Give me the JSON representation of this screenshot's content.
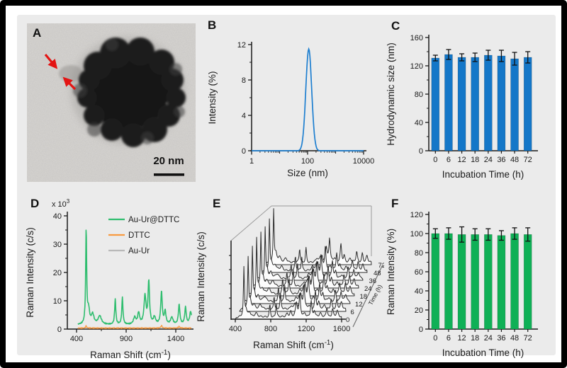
{
  "panels": {
    "a": {
      "label": "A",
      "scale_bar": "20 nm",
      "arrow_color": "#e31413"
    },
    "b": {
      "label": "B"
    },
    "c": {
      "label": "C"
    },
    "d": {
      "label": "D"
    },
    "e": {
      "label": "E"
    },
    "f": {
      "label": "F"
    }
  },
  "chart_data": [
    {
      "id": "B",
      "type": "line",
      "title": "",
      "xlabel": "Size (nm)",
      "ylabel": "Intensity (%)",
      "xscale": "log",
      "xlim": [
        1,
        10000
      ],
      "xticks": [
        1,
        100,
        10000
      ],
      "xticks_medium": [
        10,
        1000
      ],
      "ylim": [
        0,
        12
      ],
      "yticks": [
        0,
        4,
        8,
        12
      ],
      "yminor": 2,
      "line_color": "#1e7fd0",
      "peak": {
        "center_nm": 110,
        "max_intensity": 11.5,
        "sigma_log10": 0.105
      }
    },
    {
      "id": "C",
      "type": "bar",
      "xlabel": "Incubation Time (h)",
      "ylabel": "Hydrodynamic size (nm)",
      "categories": [
        "0",
        "6",
        "12",
        "18",
        "24",
        "36",
        "48",
        "72"
      ],
      "values": [
        131,
        136,
        132,
        132,
        135,
        134,
        130,
        132
      ],
      "errors": [
        4,
        7,
        5,
        6,
        7,
        8,
        9,
        8
      ],
      "ylim": [
        0,
        160
      ],
      "yticks": [
        0,
        40,
        80,
        120,
        160
      ],
      "yminor": 20,
      "bar_color": "#1477c8"
    },
    {
      "id": "D",
      "type": "line",
      "scale_label": "x 10^3^",
      "xlabel": "Raman Shift (cm^-1^)",
      "ylabel": "Raman Intensity (c/s)",
      "xlim": [
        400,
        1560
      ],
      "xticks": [
        400,
        900,
        1400
      ],
      "xminor": [
        650,
        1150
      ],
      "ylim": [
        0,
        40
      ],
      "yticks": [
        0,
        10,
        20,
        30,
        40
      ],
      "yminor": 5,
      "series": [
        {
          "name": "Au-Ur@DTTC",
          "color": "#2ebd6e",
          "baseline": 1.5,
          "peaks": [
            [
              497,
              33,
              6
            ],
            [
              521,
              5,
              12
            ],
            [
              562,
              3.5,
              16
            ],
            [
              634,
              3,
              20
            ],
            [
              790,
              9,
              7
            ],
            [
              862,
              9.5,
              7
            ],
            [
              986,
              2.5,
              14
            ],
            [
              1026,
              4,
              11
            ],
            [
              1090,
              10,
              12
            ],
            [
              1128,
              15,
              9
            ],
            [
              1185,
              2.5,
              13
            ],
            [
              1256,
              11.5,
              9
            ],
            [
              1293,
              4.5,
              10
            ],
            [
              1360,
              2.5,
              14
            ],
            [
              1434,
              7,
              9
            ],
            [
              1498,
              6,
              9
            ],
            [
              1550,
              4.5,
              12
            ]
          ]
        },
        {
          "name": "DTTC",
          "color": "#f89a40",
          "baseline": 0.35,
          "peaks": [
            [
              497,
              0.8,
              6
            ],
            [
              1256,
              0.9,
              8
            ],
            [
              1434,
              0.6,
              8
            ]
          ]
        },
        {
          "name": "Au-Ur",
          "color": "#b9b9b9",
          "baseline": 0.3,
          "peaks": []
        }
      ]
    },
    {
      "id": "E",
      "type": "waterfall",
      "xlabel": "Raman Shift (cm^-1^)",
      "ylabel": "Raman Intensity (c/s)",
      "zlabel": "Time (h)",
      "xlim": [
        400,
        1600
      ],
      "xticks": [
        400,
        800,
        1200,
        1600
      ],
      "times": [
        "0",
        "6",
        "12",
        "18",
        "24",
        "36",
        "48",
        "72"
      ],
      "trace_color": "#2b2b2b"
    },
    {
      "id": "F",
      "type": "bar",
      "xlabel": "Incubation Time (h)",
      "ylabel": "Raman Intensity (%)",
      "categories": [
        "0",
        "6",
        "12",
        "18",
        "24",
        "36",
        "48",
        "72"
      ],
      "values": [
        100,
        100,
        99,
        99,
        99,
        98,
        100,
        99
      ],
      "errors": [
        5,
        6,
        8,
        6,
        6,
        5,
        6,
        7
      ],
      "ylim": [
        0,
        120
      ],
      "yticks": [
        0,
        20,
        40,
        60,
        80,
        100,
        120
      ],
      "yminor": 10,
      "bar_color": "#0fb056"
    }
  ]
}
